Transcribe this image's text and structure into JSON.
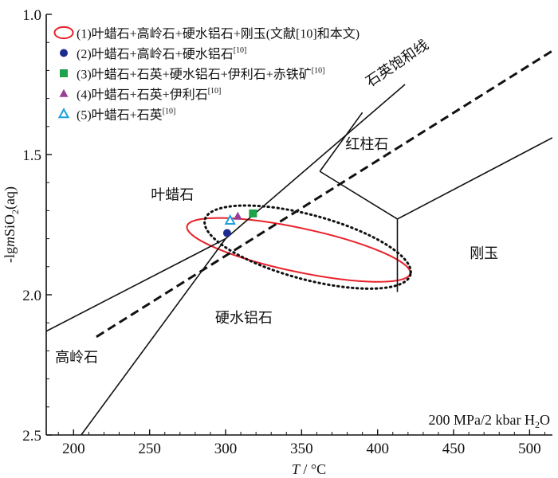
{
  "chart_data": {
    "type": "scatter",
    "xlabel_var": "T",
    "xlabel_unit": "°C",
    "ylabel": "-lgmSiO2(aq)",
    "ylabel_parts": {
      "pre": "-lg",
      "var": "m",
      "mid": "SiO",
      "sub": "2",
      "post": "(aq)"
    },
    "xlim": [
      182,
      515
    ],
    "ylim": [
      1.0,
      2.5
    ],
    "y_reversed": true,
    "xticks": [
      200,
      250,
      300,
      350,
      400,
      450,
      500
    ],
    "yticks": [
      1.0,
      1.5,
      2.0,
      2.5
    ],
    "ytick_labels": [
      "1.0",
      "1.5",
      "2.0",
      "2.5"
    ],
    "condition_label": "200 MPa/2 kbar H",
    "condition_sub": "2",
    "condition_tail": "O",
    "field_labels": [
      {
        "name": "pyrophyllite",
        "text": "叶蜡石",
        "x": 265,
        "y": 1.66
      },
      {
        "name": "andalusite",
        "text": "红柱石",
        "x": 393,
        "y": 1.48
      },
      {
        "name": "corundum",
        "text": "刚玉",
        "x": 470,
        "y": 1.87
      },
      {
        "name": "diaspore",
        "text": "硬水铝石",
        "x": 312,
        "y": 2.1
      },
      {
        "name": "kaolinite",
        "text": "高岭石",
        "x": 202,
        "y": 2.24
      }
    ],
    "phase_boundaries": [
      {
        "name": "kaolinite-pyrophyllite",
        "points": [
          [
            182,
            2.13
          ],
          [
            300,
            1.8
          ]
        ]
      },
      {
        "name": "kaolinite-diaspore",
        "points": [
          [
            205,
            2.5
          ],
          [
            300,
            1.8
          ]
        ]
      },
      {
        "name": "pyrophyllite-diaspore",
        "points": [
          [
            300,
            1.8
          ],
          [
            418,
            1.25
          ]
        ]
      },
      {
        "name": "pyrophyllite-andalusite",
        "points": [
          [
            362,
            1.56
          ],
          [
            390,
            1.35
          ]
        ]
      },
      {
        "name": "andalusite-diaspore",
        "points": [
          [
            362,
            1.56
          ],
          [
            413,
            1.73
          ]
        ]
      },
      {
        "name": "andalusite-corundum",
        "points": [
          [
            413,
            1.73
          ],
          [
            515,
            1.44
          ]
        ]
      },
      {
        "name": "diaspore-corundum",
        "points": [
          [
            413,
            1.73
          ],
          [
            413,
            1.99
          ]
        ]
      }
    ],
    "quartz_saturation": {
      "label": "石英饱和线",
      "points": [
        [
          215,
          2.15
        ],
        [
          515,
          1.13
        ]
      ]
    },
    "regions": [
      {
        "name": "region-1-red",
        "cx": 348,
        "cy": 1.84,
        "rx": 75,
        "ry": 0.078,
        "angle_deg": 12,
        "color": "#e8212a"
      },
      {
        "name": "region-dotted",
        "cx": 354,
        "cy": 1.83,
        "rx": 70,
        "ry": 0.115,
        "angle_deg": 15,
        "color": "#111111"
      }
    ],
    "series": [
      {
        "id": "1",
        "name": "(1)叶蜡石+高岭石+硬水铝石+刚玉(文献[10]和本文)",
        "ref": "",
        "marker": "ellipse",
        "color": "#e8212a",
        "points": []
      },
      {
        "id": "2",
        "name": "(2)叶蜡石+高岭石+硬水铝石",
        "ref": "[10]",
        "marker": "circle",
        "color": "#1d2b8f",
        "points": [
          [
            301,
            1.78
          ]
        ]
      },
      {
        "id": "3",
        "name": "(3)叶蜡石+石英+硬水铝石+伊利石+赤铁矿",
        "ref": "[10]",
        "marker": "square",
        "color": "#1ea24a",
        "points": [
          [
            318,
            1.71
          ]
        ]
      },
      {
        "id": "4",
        "name": "(4)叶蜡石+石英+伊利石",
        "ref": "[10]",
        "marker": "triangle",
        "color": "#9b3c95",
        "points": [
          [
            308,
            1.72
          ]
        ]
      },
      {
        "id": "5",
        "name": "(5)叶蜡石+石英",
        "ref": "[10]",
        "marker": "triangle-open",
        "color": "#1aa0e0",
        "points": [
          [
            303,
            1.735
          ]
        ]
      }
    ]
  }
}
